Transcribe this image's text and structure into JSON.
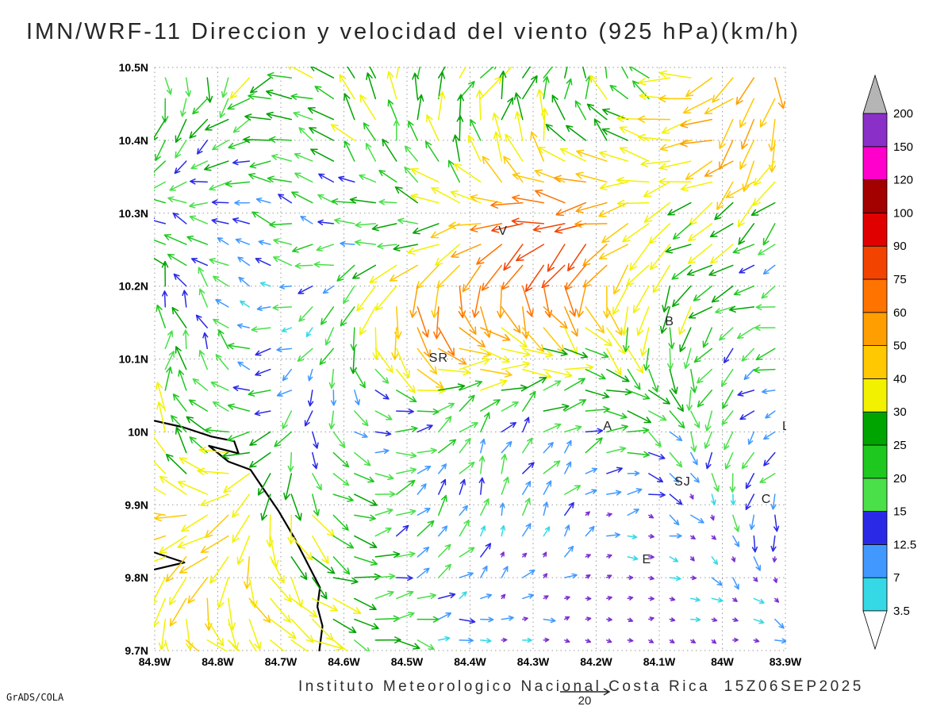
{
  "title": "IMN/WRF-11 Direccion y velocidad del viento (925 hPa)(km/h)",
  "footer": "Instituto Meteorologico Nacional Costa Rica  15Z06SEP2025",
  "credit": "GrADS/COLA",
  "chart_data": {
    "type": "vector-field-map",
    "title": "IMN/WRF-11 Direccion y velocidad del viento (925 hPa)(km/h)",
    "model": "IMN/WRF-11",
    "variable": "Direccion y velocidad del viento",
    "pressure_level": "925 hPa",
    "units": "km/h",
    "valid_time": "15Z06SEP2025",
    "institution": "Instituto Meteorologico Nacional Costa Rica",
    "x_axis": {
      "ticks": [
        "84.9W",
        "84.8W",
        "84.7W",
        "84.6W",
        "84.5W",
        "84.4W",
        "84.3W",
        "84.2W",
        "84.1W",
        "84W",
        "83.9W"
      ],
      "range_deg": [
        -84.9,
        -83.9
      ],
      "grid_interval_deg": 0.1
    },
    "y_axis": {
      "ticks": [
        "10.5N",
        "10.4N",
        "10.3N",
        "10.2N",
        "10.1N",
        "10N",
        "9.9N",
        "9.8N",
        "9.7N"
      ],
      "range_deg": [
        9.7,
        10.5
      ],
      "grid_interval_deg": 0.1
    },
    "grid_style": "dotted",
    "colorbar": {
      "labels": [
        "3.5",
        "7",
        "12.5",
        "15",
        "20",
        "25",
        "30",
        "40",
        "50",
        "60",
        "75",
        "90",
        "100",
        "120",
        "150",
        "200"
      ],
      "levels": [
        3.5,
        7,
        12.5,
        15,
        20,
        25,
        30,
        40,
        50,
        60,
        75,
        90,
        100,
        120,
        150,
        200
      ],
      "colors": [
        "#35d9e6",
        "#4199ff",
        "#2a2ae6",
        "#49e049",
        "#1fc81f",
        "#00a400",
        "#f2f200",
        "#ffc800",
        "#ff9e00",
        "#ff7300",
        "#f24400",
        "#e10000",
        "#a30000",
        "#ff00cc",
        "#8b2fc9"
      ],
      "under_color": "#ffffff",
      "over_color": "#b5b5b5",
      "below_min_arrow_color": "#7b2fd0"
    },
    "reference_vector": {
      "label": "20",
      "value_kmh": 20
    },
    "station_labels": [
      {
        "label": "V",
        "x": 0.545,
        "y": 0.287
      },
      {
        "label": "B",
        "x": 0.809,
        "y": 0.442
      },
      {
        "label": "SR",
        "x": 0.435,
        "y": 0.505
      },
      {
        "label": "A",
        "x": 0.711,
        "y": 0.622
      },
      {
        "label": "SJ",
        "x": 0.824,
        "y": 0.717
      },
      {
        "label": "C",
        "x": 0.962,
        "y": 0.747
      },
      {
        "label": "E",
        "x": 0.773,
        "y": 0.85
      },
      {
        "label": "L",
        "x": 0.995,
        "y": 0.622
      }
    ],
    "coastline": {
      "main": [
        [
          0.0,
          0.606
        ],
        [
          0.045,
          0.617
        ],
        [
          0.09,
          0.633
        ],
        [
          0.126,
          0.641
        ],
        [
          0.133,
          0.662
        ],
        [
          0.086,
          0.649
        ],
        [
          0.117,
          0.676
        ],
        [
          0.152,
          0.69
        ],
        [
          0.172,
          0.722
        ],
        [
          0.196,
          0.76
        ],
        [
          0.221,
          0.806
        ],
        [
          0.243,
          0.852
        ],
        [
          0.262,
          0.892
        ],
        [
          0.258,
          0.925
        ],
        [
          0.266,
          0.958
        ],
        [
          0.261,
          1.0
        ]
      ],
      "islet": [
        [
          0.0,
          0.832
        ],
        [
          0.047,
          0.849
        ],
        [
          0.0,
          0.861
        ]
      ]
    },
    "vector_field": {
      "note": "Dense field of wind arrows (~30x28 grid) colored by speed per the colorbar; field is procedurally approximated from the screenshot's visual pattern.",
      "nx": 30,
      "ny": 28,
      "base_speed": 17,
      "speed_range_kmh": [
        0.8,
        135
      ],
      "speed_bumps": [
        {
          "x": 0.62,
          "y": 0.3,
          "amp": 62,
          "var": 0.012
        },
        {
          "x": 0.44,
          "y": 0.44,
          "amp": 48,
          "var": 0.01
        },
        {
          "x": 0.95,
          "y": 0.07,
          "amp": 36,
          "var": 0.022
        },
        {
          "x": 0.1,
          "y": 0.82,
          "amp": 18,
          "var": 0.06
        }
      ]
    }
  }
}
